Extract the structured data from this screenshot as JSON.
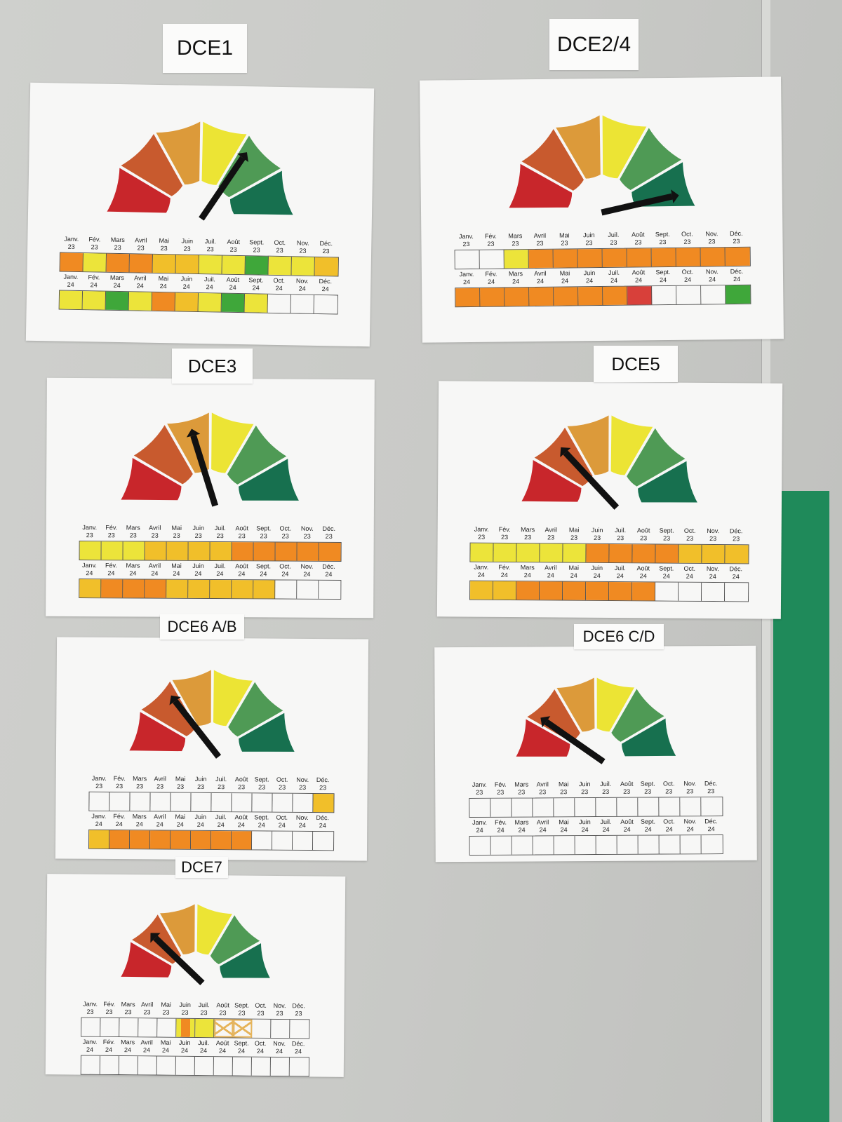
{
  "months": [
    "Janv.",
    "Fév.",
    "Mars",
    "Avril",
    "Mai",
    "Juin",
    "Juil.",
    "Août",
    "Sept.",
    "Oct.",
    "Nov.",
    "Déc."
  ],
  "years": [
    "23",
    "24"
  ],
  "gauge_colors": [
    "#c8262b",
    "#c85a2e",
    "#dc9a3a",
    "#ece434",
    "#4f9a55",
    "#17704f"
  ],
  "cell_colors": {
    "Y": "#ece43a",
    "YO": "#f1bf2a",
    "O": "#f08a22",
    "G": "#3fa73a",
    "R": "#d8403a",
    "E": "#f7f7f6"
  },
  "boards": [
    {
      "title": "DCE1",
      "needle_level": 0.7,
      "rows": [
        [
          "O",
          "Y",
          "O",
          "O",
          "YO",
          "YO",
          "Y",
          "Y",
          "G",
          "Y",
          "Y",
          "YO"
        ],
        [
          "Y",
          "Y",
          "G",
          "Y",
          "O",
          "YO",
          "Y",
          "G",
          "Y",
          "E",
          "E",
          "E"
        ]
      ]
    },
    {
      "title": "DCE2/4",
      "needle_level": 0.95,
      "rows": [
        [
          "E",
          "E",
          "Y",
          "O",
          "O",
          "O",
          "O",
          "O",
          "O",
          "O",
          "O",
          "O"
        ],
        [
          "O",
          "O",
          "O",
          "O",
          "O",
          "O",
          "O",
          "R",
          "E",
          "E",
          "E",
          "G"
        ]
      ]
    },
    {
      "title": "DCE3",
      "needle_level": 0.42,
      "rows": [
        [
          "Y",
          "Y",
          "Y",
          "YO",
          "YO",
          "YO",
          "YO",
          "O",
          "O",
          "O",
          "O",
          "O"
        ],
        [
          "YO",
          "O",
          "O",
          "O",
          "YO",
          "YO",
          "YO",
          "YO",
          "YO",
          "E",
          "E",
          "E"
        ]
      ]
    },
    {
      "title": "DCE5",
      "needle_level": 0.27,
      "rows": [
        [
          "Y",
          "Y",
          "Y",
          "Y",
          "Y",
          "O",
          "O",
          "O",
          "O",
          "YO",
          "YO",
          "YO"
        ],
        [
          "YO",
          "YO",
          "O",
          "O",
          "O",
          "O",
          "O",
          "O",
          "E",
          "E",
          "E",
          "E"
        ]
      ]
    },
    {
      "title": "DCE6 A/B",
      "needle_level": 0.3,
      "rows": [
        [
          "E",
          "E",
          "E",
          "E",
          "E",
          "E",
          "E",
          "E",
          "E",
          "E",
          "E",
          "YO"
        ],
        [
          "YO",
          "O",
          "O",
          "O",
          "O",
          "O",
          "O",
          "O",
          "E",
          "E",
          "E",
          "E"
        ]
      ]
    },
    {
      "title": "DCE6 C/D",
      "needle_level": 0.2,
      "rows": [
        [
          "E",
          "E",
          "E",
          "E",
          "E",
          "E",
          "E",
          "E",
          "E",
          "E",
          "E",
          "E"
        ],
        [
          "E",
          "E",
          "E",
          "E",
          "E",
          "E",
          "E",
          "E",
          "E",
          "E",
          "E",
          "E"
        ]
      ]
    },
    {
      "title": "DCE7",
      "needle_level": 0.25,
      "rows": [
        [
          "E",
          "E",
          "E",
          "E",
          "E",
          "Y/O",
          "Y",
          "X",
          "X",
          "E",
          "E",
          "E"
        ],
        [
          "E",
          "E",
          "E",
          "E",
          "E",
          "E",
          "E",
          "E",
          "E",
          "E",
          "E",
          "E"
        ]
      ]
    }
  ]
}
